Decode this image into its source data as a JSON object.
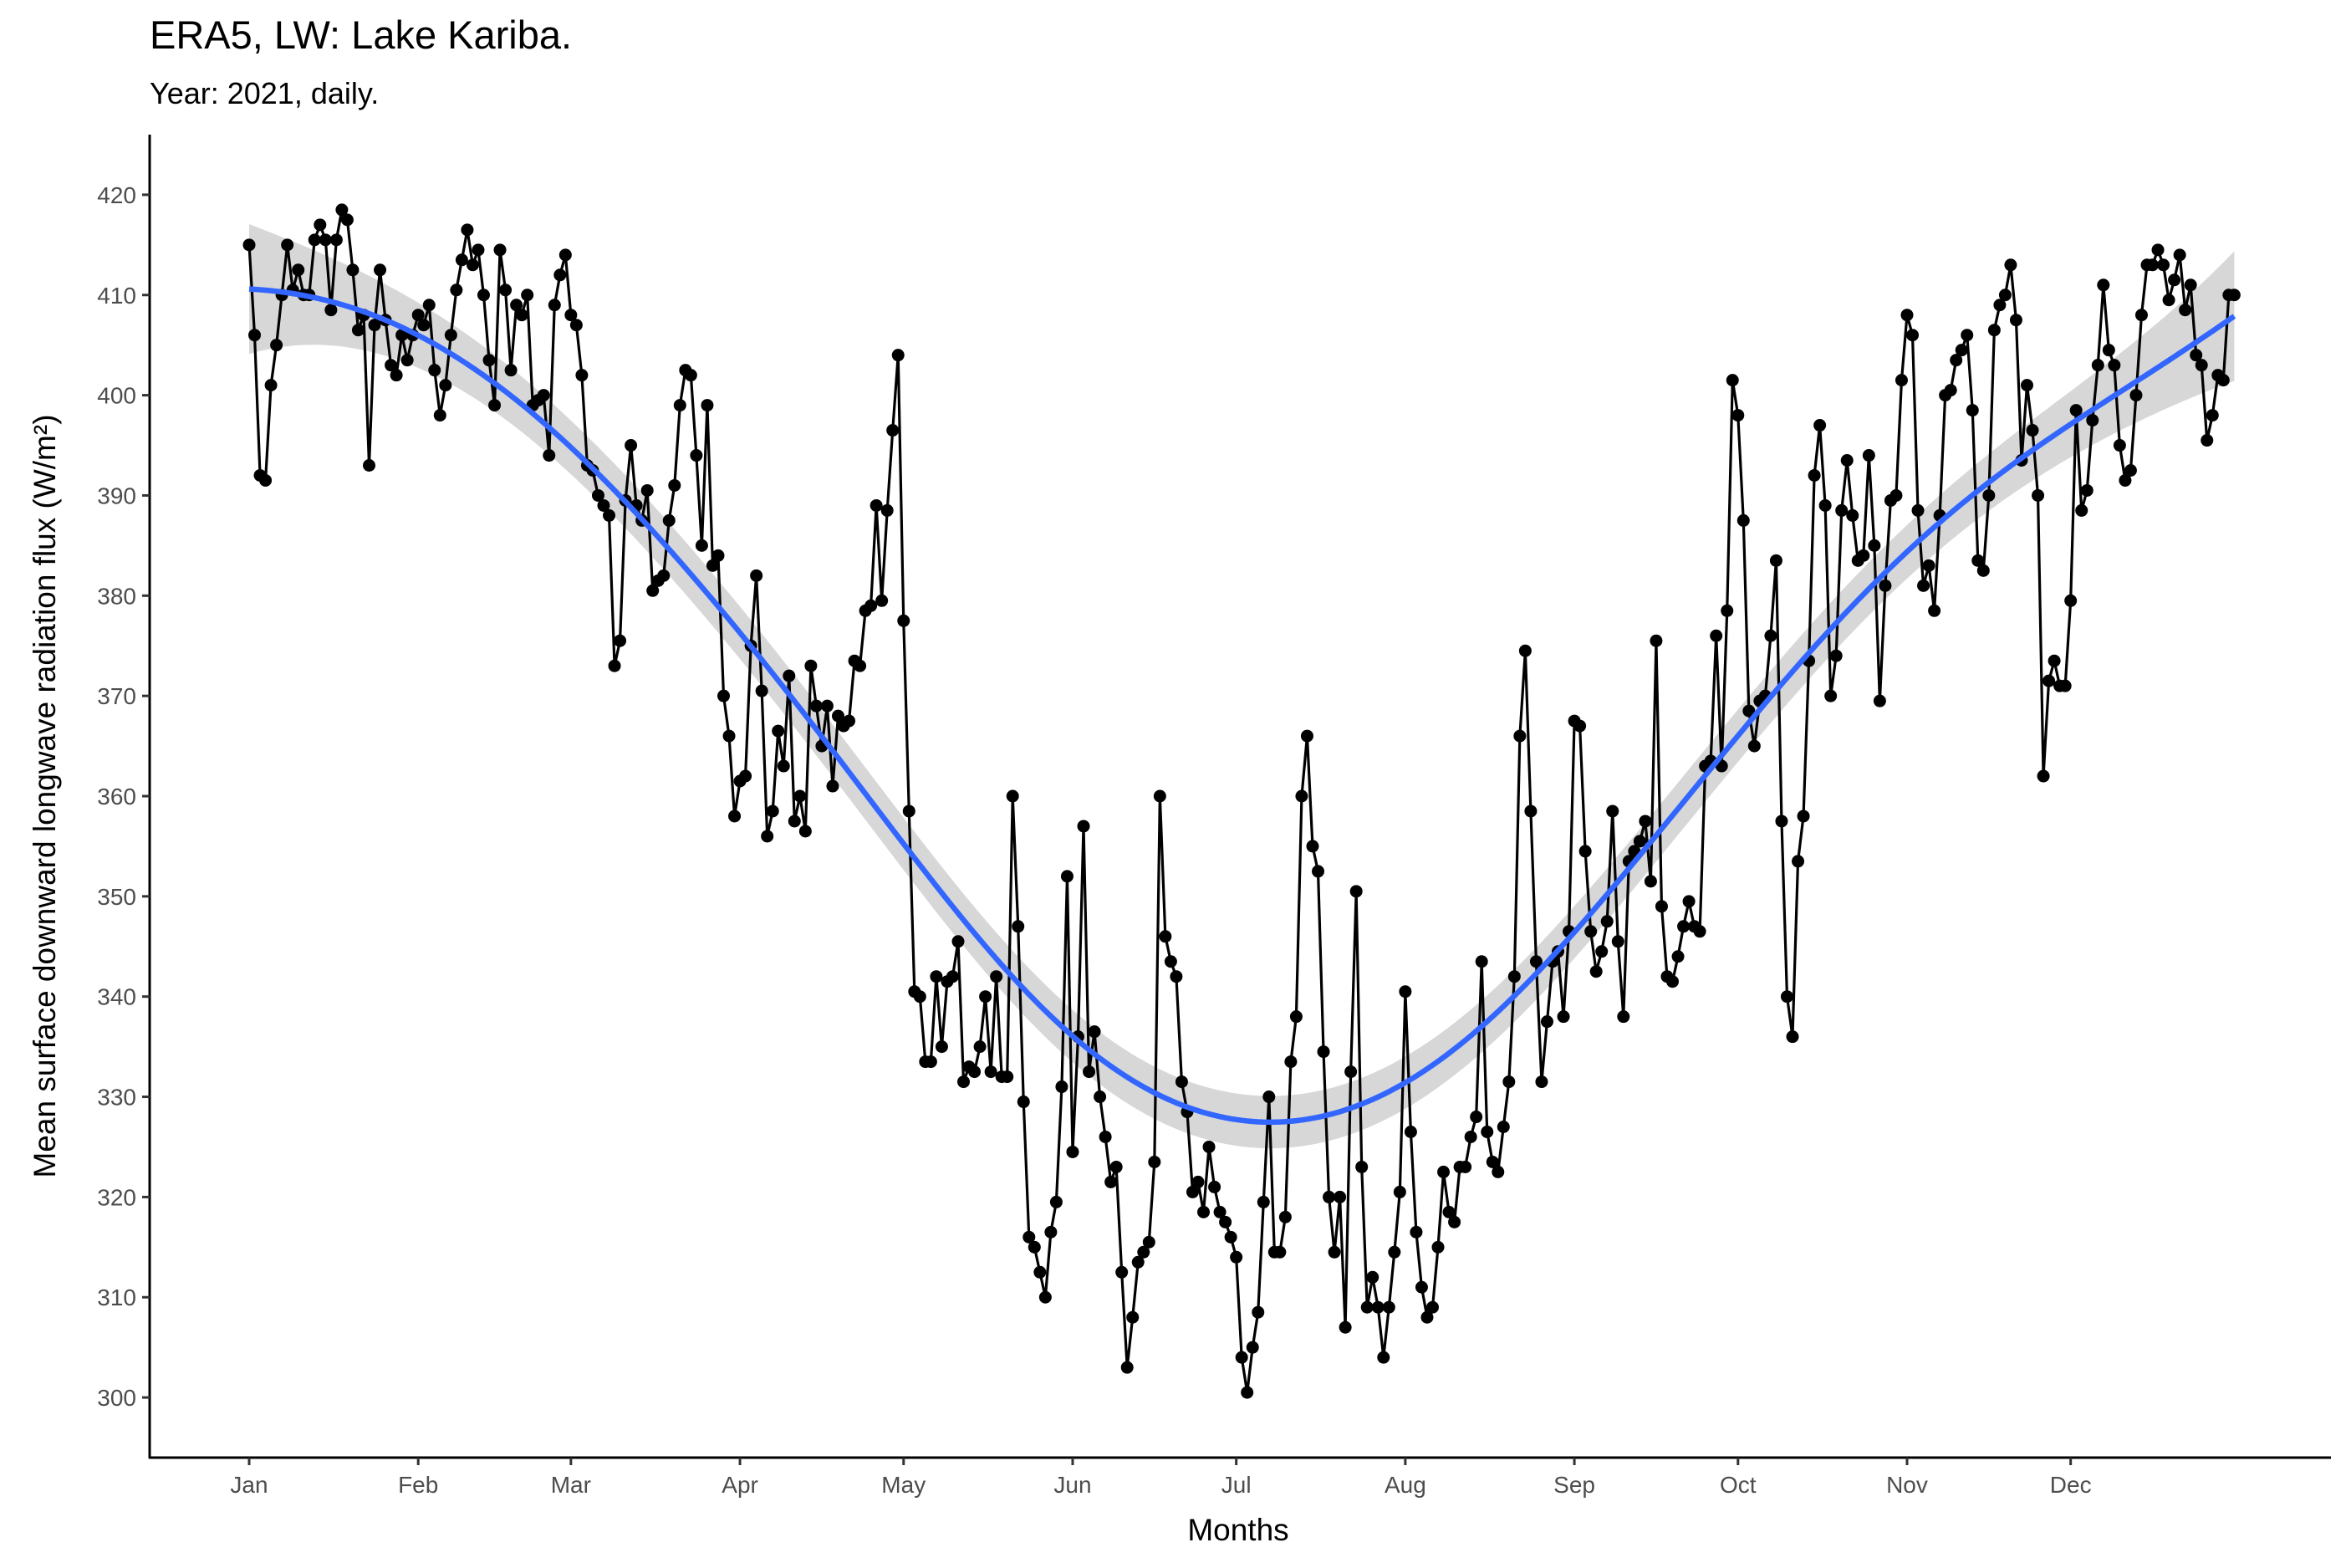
{
  "chart_data": {
    "type": "line",
    "title": "ERA5, LW: Lake Kariba.",
    "subtitle": "Year: 2021, daily.",
    "xlabel": "Months",
    "ylabel": "Mean surface downward longwave radiation flux (W/m²)",
    "color": "#000000",
    "smooth_color": "#3366ff",
    "band_color": "#d3d3d3",
    "ylim": [
      294,
      426
    ],
    "yticks": [
      300,
      310,
      320,
      330,
      340,
      350,
      360,
      370,
      380,
      390,
      400,
      410,
      420
    ],
    "categories": [
      "Jan",
      null,
      null,
      null,
      null,
      null,
      null,
      null,
      null,
      null,
      null,
      null,
      null,
      null,
      null,
      null,
      null,
      null,
      null,
      null,
      null,
      null,
      null,
      null,
      null,
      null,
      null,
      null,
      null,
      null,
      null,
      "Feb",
      null,
      null,
      null,
      null,
      null,
      null,
      null,
      null,
      null,
      null,
      null,
      null,
      null,
      null,
      null,
      null,
      null,
      null,
      null,
      null,
      null,
      null,
      null,
      null,
      null,
      null,
      null,
      "Mar",
      null,
      null,
      null,
      null,
      null,
      null,
      null,
      null,
      null,
      null,
      null,
      null,
      null,
      null,
      null,
      null,
      null,
      null,
      null,
      null,
      null,
      null,
      null,
      null,
      null,
      null,
      null,
      null,
      null,
      null,
      "Apr",
      null,
      null,
      null,
      null,
      null,
      null,
      null,
      null,
      null,
      null,
      null,
      null,
      null,
      null,
      null,
      null,
      null,
      null,
      null,
      null,
      null,
      null,
      null,
      null,
      null,
      null,
      null,
      null,
      null,
      "May",
      null,
      null,
      null,
      null,
      null,
      null,
      null,
      null,
      null,
      null,
      null,
      null,
      null,
      null,
      null,
      null,
      null,
      null,
      null,
      null,
      null,
      null,
      null,
      null,
      null,
      null,
      null,
      null,
      null,
      null,
      "Jun",
      null,
      null,
      null,
      null,
      null,
      null,
      null,
      null,
      null,
      null,
      null,
      null,
      null,
      null,
      null,
      null,
      null,
      null,
      null,
      null,
      null,
      null,
      null,
      null,
      null,
      null,
      null,
      null,
      null,
      "Jul",
      null,
      null,
      null,
      null,
      null,
      null,
      null,
      null,
      null,
      null,
      null,
      null,
      null,
      null,
      null,
      null,
      null,
      null,
      null,
      null,
      null,
      null,
      null,
      null,
      null,
      null,
      null,
      null,
      null,
      null,
      "Aug",
      null,
      null,
      null,
      null,
      null,
      null,
      null,
      null,
      null,
      null,
      null,
      null,
      null,
      null,
      null,
      null,
      null,
      null,
      null,
      null,
      null,
      null,
      null,
      null,
      null,
      null,
      null,
      null,
      null,
      null,
      "Sep",
      null,
      null,
      null,
      null,
      null,
      null,
      null,
      null,
      null,
      null,
      null,
      null,
      null,
      null,
      null,
      null,
      null,
      null,
      null,
      null,
      null,
      null,
      null,
      null,
      null,
      null,
      null,
      null,
      null,
      "Oct",
      null,
      null,
      null,
      null,
      null,
      null,
      null,
      null,
      null,
      null,
      null,
      null,
      null,
      null,
      null,
      null,
      null,
      null,
      null,
      null,
      null,
      null,
      null,
      null,
      null,
      null,
      null,
      null,
      null,
      null,
      "Nov",
      null,
      null,
      null,
      null,
      null,
      null,
      null,
      null,
      null,
      null,
      null,
      null,
      null,
      null,
      null,
      null,
      null,
      null,
      null,
      null,
      null,
      null,
      null,
      null,
      null,
      null,
      null,
      null,
      null,
      "Dec",
      null,
      null,
      null,
      null,
      null,
      null,
      null,
      null,
      null,
      null,
      null,
      null,
      null,
      null,
      null,
      null,
      null,
      null,
      null,
      null,
      null,
      null,
      null,
      null,
      null,
      null,
      null,
      null,
      null,
      null
    ],
    "values": [
      415,
      406,
      392,
      391.5,
      401,
      405,
      410,
      415,
      410.5,
      412.5,
      410,
      410,
      415.5,
      417,
      415.5,
      408.5,
      415.5,
      418.5,
      417.5,
      412.5,
      406.5,
      408,
      393,
      407,
      412.5,
      407.5,
      403,
      402,
      406,
      403.5,
      406,
      408,
      407,
      409,
      402.5,
      398,
      401,
      406,
      410.5,
      413.5,
      416.5,
      413,
      414.5,
      410,
      403.5,
      399,
      414.5,
      410.5,
      402.5,
      409,
      408,
      410,
      399,
      399.5,
      400,
      394,
      409,
      412,
      414,
      408,
      407,
      402,
      393,
      392.5,
      390,
      389,
      388,
      373,
      375.5,
      389.5,
      395,
      389,
      387.5,
      390.5,
      380.5,
      381.5,
      382,
      387.5,
      391,
      399,
      402.5,
      402,
      394,
      385,
      399,
      383,
      384,
      370,
      366,
      358,
      361.5,
      362,
      375,
      382,
      370.5,
      356,
      358.5,
      366.5,
      363,
      372,
      357.5,
      360,
      356.5,
      373,
      369,
      365,
      369,
      361,
      368,
      367,
      367.5,
      373.5,
      373,
      378.5,
      379,
      389,
      379.5,
      388.5,
      396.5,
      404,
      377.5,
      358.5,
      340.5,
      340,
      333.5,
      333.5,
      342,
      335,
      341.5,
      342,
      345.5,
      331.5,
      333,
      332.5,
      335,
      340,
      332.5,
      342,
      332,
      332,
      360,
      347,
      329.5,
      316,
      315,
      312.5,
      310,
      316.5,
      319.5,
      331,
      352,
      324.5,
      336,
      357,
      332.5,
      336.5,
      330,
      326,
      321.5,
      323,
      312.5,
      303,
      308,
      313.5,
      314.5,
      315.5,
      323.5,
      360,
      346,
      343.5,
      342,
      331.5,
      328.5,
      320.5,
      321.5,
      318.5,
      325,
      321,
      318.5,
      317.5,
      316,
      314,
      304,
      300.5,
      305,
      308.5,
      319.5,
      330,
      314.5,
      314.5,
      318,
      333.5,
      338,
      360,
      366,
      355,
      352.5,
      334.5,
      320,
      314.5,
      320,
      307,
      332.5,
      350.5,
      323,
      309,
      312,
      309,
      304,
      309,
      314.5,
      320.5,
      340.5,
      326.5,
      316.5,
      311,
      308,
      309,
      315,
      322.5,
      318.5,
      317.5,
      323,
      323,
      326,
      328,
      343.5,
      326.5,
      323.5,
      322.5,
      327,
      331.5,
      342,
      366,
      374.5,
      358.5,
      343.5,
      331.5,
      337.5,
      343.5,
      344.5,
      338,
      346.5,
      367.5,
      367,
      354.5,
      346.5,
      342.5,
      344.5,
      347.5,
      358.5,
      345.5,
      338,
      353.5,
      354.5,
      355.5,
      357.5,
      351.5,
      375.5,
      349,
      342,
      341.5,
      344,
      347,
      349.5,
      347,
      346.5,
      363,
      363.5,
      376,
      363,
      378.5,
      401.5,
      398,
      387.5,
      368.5,
      365,
      369.5,
      370,
      376,
      383.5,
      357.5,
      340,
      336,
      353.5,
      358,
      373.5,
      392,
      397,
      389,
      370,
      374,
      388.5,
      393.5,
      388,
      383.5,
      384,
      394,
      385,
      369.5,
      381,
      389.5,
      390,
      401.5,
      408,
      406,
      388.5,
      381,
      383,
      378.5,
      388,
      400,
      400.5,
      403.5,
      404.5,
      406,
      398.5,
      383.5,
      382.5,
      390,
      406.5,
      409,
      410,
      413,
      407.5,
      393.5,
      401,
      396.5,
      390,
      362,
      371.5,
      373.5,
      371,
      371,
      379.5,
      398.5,
      388.5,
      390.5,
      397.5,
      403,
      411,
      404.5,
      403,
      395,
      391.5,
      392.5,
      400,
      408,
      413,
      413,
      414.5,
      413,
      409.5,
      411.5,
      414,
      408.5,
      411,
      404,
      403,
      395.5,
      398,
      402,
      401.5,
      410,
      410
    ]
  }
}
